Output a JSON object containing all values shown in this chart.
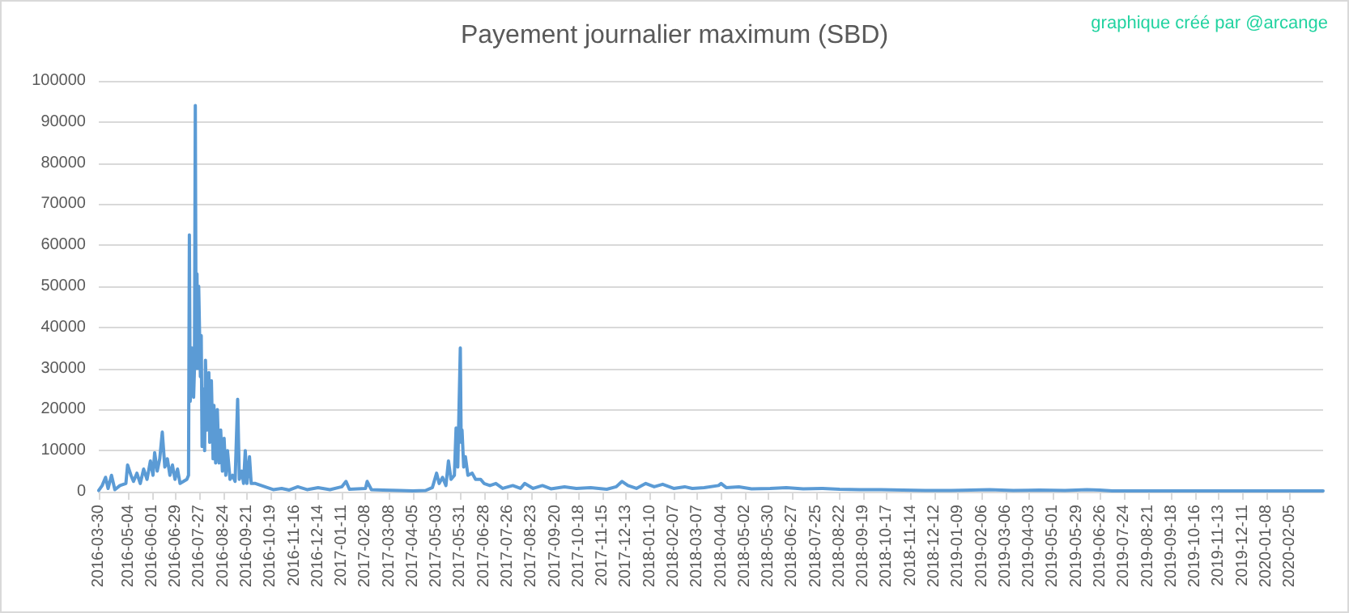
{
  "chart_data": {
    "type": "line",
    "title": "Payement journalier maximum (SBD)",
    "annotations": [
      "graphique créé par @arcange"
    ],
    "x": [
      "2016-03-30",
      "2016-04-03",
      "2016-04-07",
      "2016-04-10",
      "2016-04-14",
      "2016-04-18",
      "2016-04-24",
      "2016-05-01",
      "2016-05-03",
      "2016-05-07",
      "2016-05-10",
      "2016-05-14",
      "2016-05-18",
      "2016-05-22",
      "2016-05-26",
      "2016-05-30",
      "2016-06-02",
      "2016-06-04",
      "2016-06-07",
      "2016-06-10",
      "2016-06-13",
      "2016-06-16",
      "2016-06-19",
      "2016-06-22",
      "2016-06-25",
      "2016-06-28",
      "2016-07-01",
      "2016-07-04",
      "2016-07-08",
      "2016-07-12",
      "2016-07-14",
      "2016-07-15",
      "2016-07-16",
      "2016-07-18",
      "2016-07-20",
      "2016-07-21",
      "2016-07-22",
      "2016-07-23",
      "2016-07-24",
      "2016-07-25",
      "2016-07-26",
      "2016-07-28",
      "2016-07-29",
      "2016-07-30",
      "2016-07-31",
      "2016-08-02",
      "2016-08-03",
      "2016-08-05",
      "2016-08-07",
      "2016-08-08",
      "2016-08-10",
      "2016-08-12",
      "2016-08-13",
      "2016-08-15",
      "2016-08-17",
      "2016-08-19",
      "2016-08-21",
      "2016-08-23",
      "2016-08-25",
      "2016-08-27",
      "2016-08-29",
      "2016-09-01",
      "2016-09-04",
      "2016-09-07",
      "2016-09-10",
      "2016-09-12",
      "2016-09-15",
      "2016-09-17",
      "2016-09-19",
      "2016-09-21",
      "2016-09-24",
      "2016-09-26",
      "2016-10-01",
      "2016-10-08",
      "2016-10-15",
      "2016-10-22",
      "2016-11-01",
      "2016-11-10",
      "2016-11-20",
      "2016-12-01",
      "2016-12-14",
      "2016-12-28",
      "2017-01-11",
      "2017-01-16",
      "2017-01-20",
      "2017-02-08",
      "2017-02-10",
      "2017-02-15",
      "2017-03-01",
      "2017-03-20",
      "2017-04-05",
      "2017-04-20",
      "2017-04-28",
      "2017-05-03",
      "2017-05-06",
      "2017-05-10",
      "2017-05-14",
      "2017-05-17",
      "2017-05-20",
      "2017-05-24",
      "2017-05-26",
      "2017-05-28",
      "2017-05-31",
      "2017-06-01",
      "2017-06-02",
      "2017-06-04",
      "2017-06-06",
      "2017-06-09",
      "2017-06-14",
      "2017-06-18",
      "2017-06-24",
      "2017-06-28",
      "2017-07-05",
      "2017-07-12",
      "2017-07-20",
      "2017-08-01",
      "2017-08-10",
      "2017-08-15",
      "2017-08-25",
      "2017-09-05",
      "2017-09-15",
      "2017-10-01",
      "2017-10-15",
      "2017-11-01",
      "2017-11-20",
      "2017-12-01",
      "2017-12-08",
      "2017-12-15",
      "2017-12-25",
      "2018-01-05",
      "2018-01-15",
      "2018-01-25",
      "2018-02-07",
      "2018-02-20",
      "2018-03-01",
      "2018-03-15",
      "2018-04-01",
      "2018-04-04",
      "2018-04-10",
      "2018-04-25",
      "2018-05-10",
      "2018-06-01",
      "2018-06-20",
      "2018-07-10",
      "2018-08-01",
      "2018-08-22",
      "2018-09-15",
      "2018-10-10",
      "2018-11-05",
      "2018-12-01",
      "2019-01-01",
      "2019-02-15",
      "2019-03-15",
      "2019-04-15",
      "2019-05-15",
      "2019-06-10",
      "2019-06-25",
      "2019-07-10",
      "2019-08-15",
      "2019-10-01",
      "2019-12-01",
      "2020-01-15",
      "2020-03-15"
    ],
    "series": [
      {
        "color": "#5b9bd5",
        "values": [
          300,
          1500,
          3500,
          800,
          4000,
          500,
          1500,
          2000,
          6500,
          4000,
          2500,
          4500,
          2000,
          5500,
          3000,
          7500,
          4000,
          9500,
          5000,
          8000,
          14500,
          6000,
          8000,
          4000,
          6500,
          3000,
          5500,
          2000,
          2500,
          3000,
          4000,
          62500,
          22000,
          35000,
          23000,
          30000,
          94000,
          30000,
          53000,
          30000,
          50000,
          28000,
          38000,
          11000,
          25000,
          10000,
          32000,
          15000,
          29000,
          12000,
          27000,
          8000,
          21000,
          7000,
          20000,
          7000,
          15000,
          5000,
          13000,
          4000,
          10000,
          3000,
          4000,
          2500,
          22500,
          3000,
          5000,
          2000,
          10000,
          2000,
          8500,
          2000,
          2000,
          1500,
          1000,
          500,
          800,
          400,
          1200,
          500,
          1000,
          500,
          1200,
          2500,
          600,
          800,
          2500,
          500,
          400,
          300,
          200,
          300,
          1000,
          4500,
          2000,
          3500,
          1500,
          7500,
          3000,
          4000,
          15500,
          6000,
          35000,
          12000,
          15000,
          6000,
          8500,
          4000,
          4500,
          3000,
          3000,
          2000,
          1500,
          2000,
          800,
          1500,
          800,
          2000,
          800,
          1500,
          700,
          1200,
          800,
          1000,
          600,
          1200,
          2500,
          1500,
          800,
          2000,
          1200,
          1800,
          800,
          1200,
          800,
          1000,
          1500,
          2000,
          1000,
          1200,
          700,
          800,
          1000,
          700,
          800,
          600,
          500,
          500,
          400,
          300,
          300,
          500,
          300,
          400,
          300,
          500,
          400,
          200,
          200,
          200,
          200,
          200,
          200
        ]
      }
    ],
    "xlim": [
      "2016-03-30",
      "2020-03-15"
    ],
    "xticks": [
      "2016-03-30",
      "2016-05-04",
      "2016-06-01",
      "2016-06-29",
      "2016-07-27",
      "2016-08-24",
      "2016-09-21",
      "2016-10-19",
      "2016-11-16",
      "2016-12-14",
      "2017-01-11",
      "2017-02-08",
      "2017-03-08",
      "2017-04-05",
      "2017-05-03",
      "2017-05-31",
      "2017-06-28",
      "2017-07-26",
      "2017-08-23",
      "2017-09-20",
      "2017-10-18",
      "2017-11-15",
      "2017-12-13",
      "2018-01-10",
      "2018-02-07",
      "2018-03-07",
      "2018-04-04",
      "2018-05-02",
      "2018-05-30",
      "2018-06-27",
      "2018-07-25",
      "2018-08-22",
      "2018-09-19",
      "2018-10-17",
      "2018-11-14",
      "2018-12-12",
      "2019-01-09",
      "2019-02-06",
      "2019-03-06",
      "2019-04-03",
      "2019-05-01",
      "2019-05-29",
      "2019-06-26",
      "2019-07-24",
      "2019-08-21",
      "2019-09-18",
      "2019-10-16",
      "2019-11-13",
      "2019-12-11",
      "2020-01-08",
      "2020-02-05"
    ],
    "ylim": [
      0,
      100000
    ],
    "yticks": [
      0,
      10000,
      20000,
      30000,
      40000,
      50000,
      60000,
      70000,
      80000,
      90000,
      100000
    ],
    "grid": "y",
    "marker": "none",
    "line_style": "solid"
  }
}
